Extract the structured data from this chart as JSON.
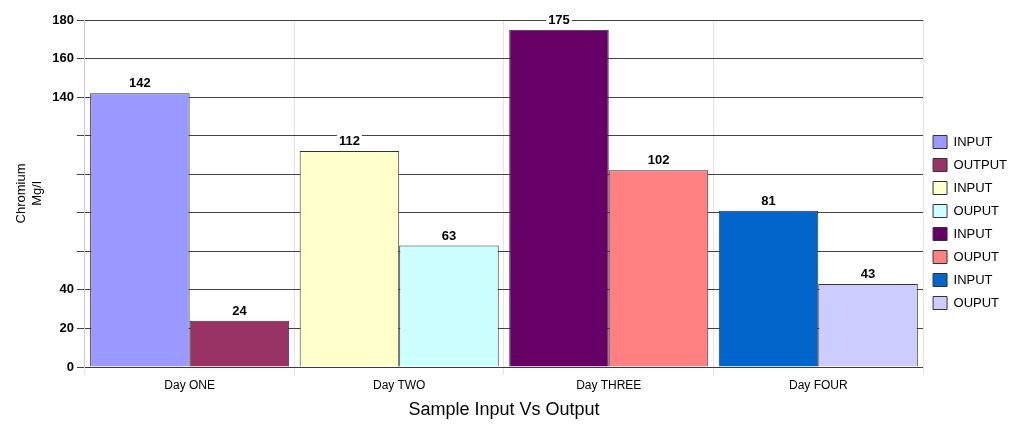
{
  "chart_data": {
    "type": "bar",
    "xlabel": "Sample Input Vs Output",
    "ylabel": "Chromium Mg/l",
    "categories": [
      "Day ONE",
      "Day TWO",
      "Day THREE",
      "Day FOUR"
    ],
    "series": [
      {
        "name": "INPUT",
        "color": "#9999ff",
        "values": [
          142,
          null,
          null,
          null
        ]
      },
      {
        "name": "OUTPUT",
        "color": "#993366",
        "values": [
          24,
          null,
          null,
          null
        ]
      },
      {
        "name": "INPUT",
        "color": "#ffffcc",
        "values": [
          null,
          112,
          null,
          null
        ]
      },
      {
        "name": "OUPUT",
        "color": "#ccffff",
        "values": [
          null,
          63,
          null,
          null
        ]
      },
      {
        "name": "INPUT",
        "color": "#660066",
        "values": [
          null,
          null,
          175,
          null
        ]
      },
      {
        "name": "OUPUT",
        "color": "#ff8080",
        "values": [
          null,
          null,
          102,
          null
        ]
      },
      {
        "name": "INPUT",
        "color": "#0066cc",
        "values": [
          null,
          null,
          null,
          81
        ]
      },
      {
        "name": "OUPUT",
        "color": "#ccccff",
        "values": [
          null,
          null,
          null,
          43
        ]
      }
    ],
    "ylim": [
      0,
      180
    ],
    "yticks": [
      0,
      20,
      40,
      {
        "value": 60,
        "label": null
      },
      {
        "value": 80,
        "label": null
      },
      {
        "value": 100,
        "label": null
      },
      {
        "value": 120,
        "label": null
      },
      140,
      160,
      180
    ],
    "grid": true,
    "legend": "right",
    "data_labels": true
  }
}
